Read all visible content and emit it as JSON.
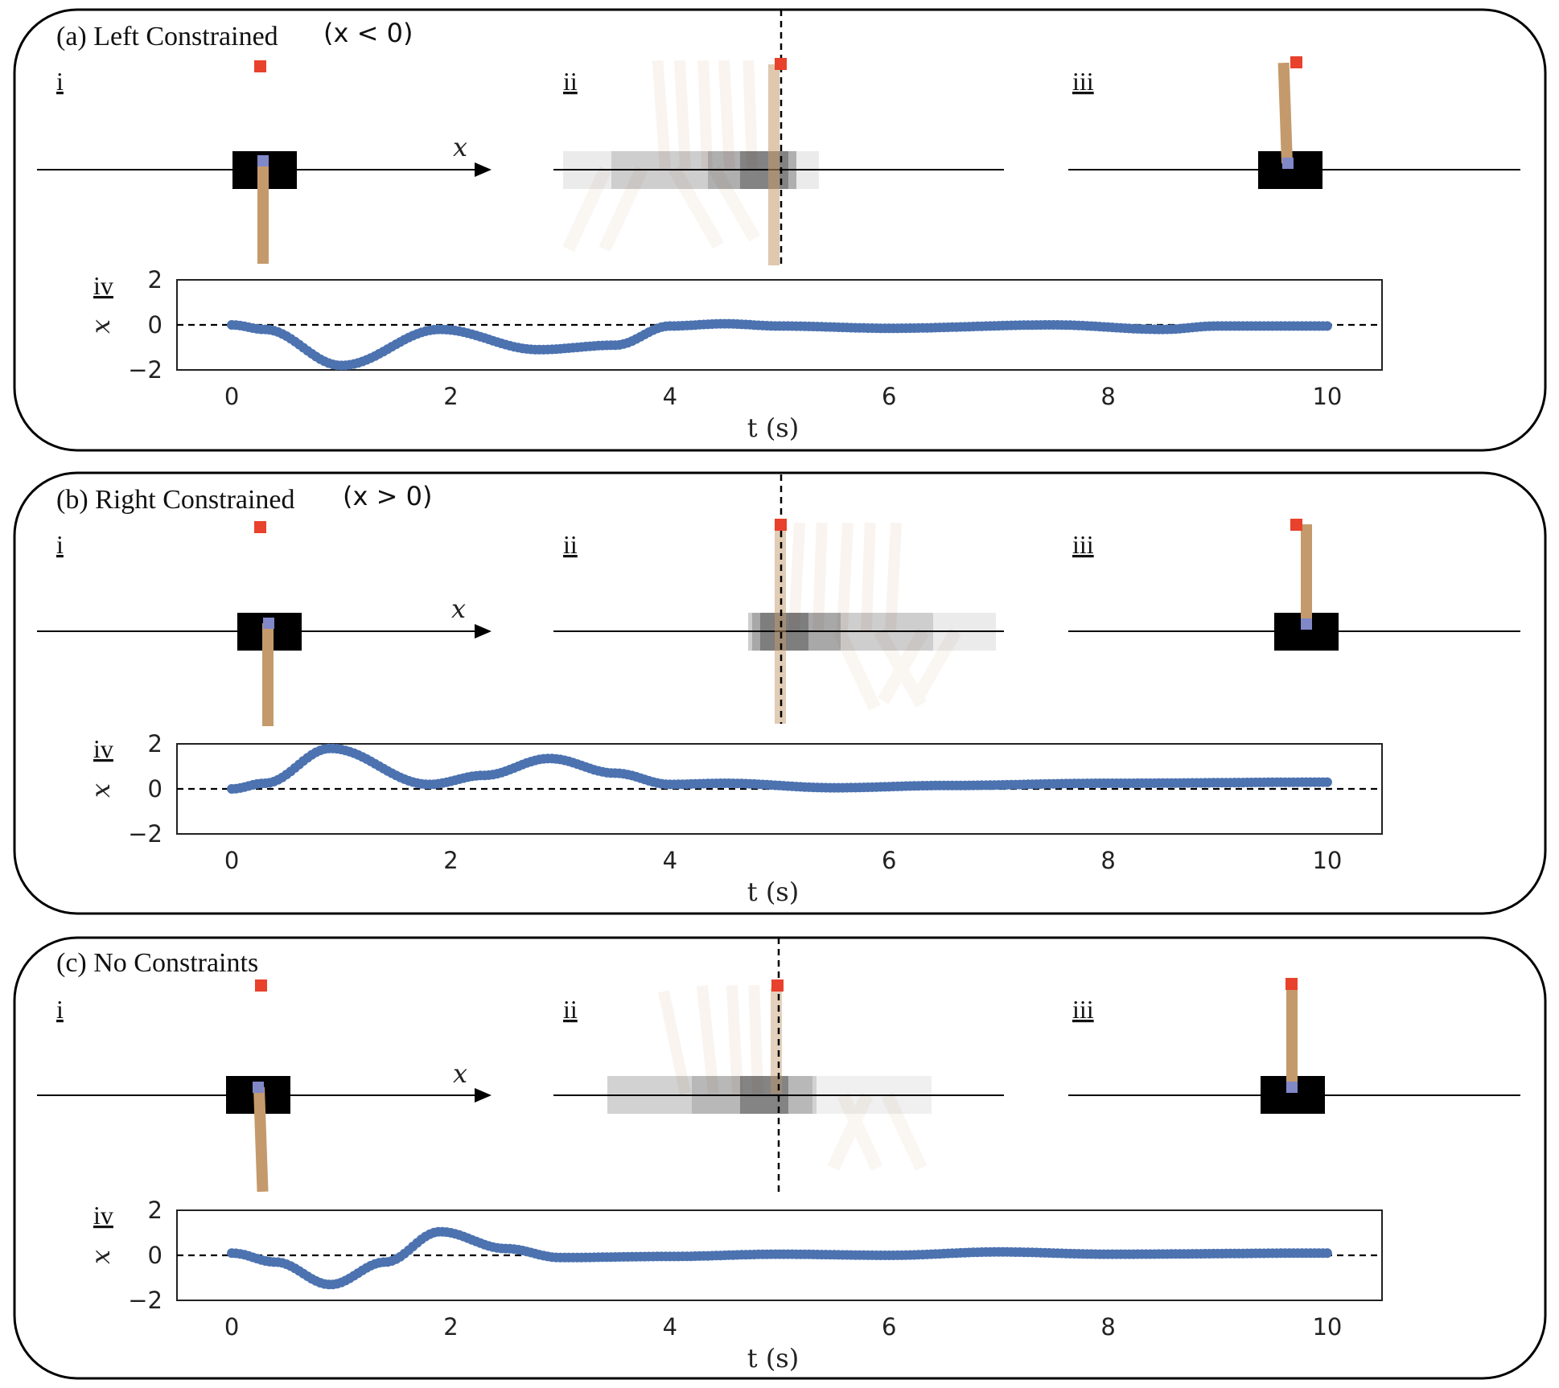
{
  "colors": {
    "series": "#4C72B0",
    "target": "#E8412C",
    "pole": "#C49A6C",
    "cart": "#000000",
    "pivot": "#8088C8",
    "panel_border": "#000000"
  },
  "labels": {
    "i": "i",
    "ii": "ii",
    "iii": "iii",
    "iv": "iv"
  },
  "cart_axis_label": "x",
  "chart_data": [
    {
      "type": "scatter",
      "panel": "(a)",
      "title": "(a) Left Constrained",
      "subtitle": "(x < 0)",
      "xlabel": "t (s)",
      "ylabel": "x",
      "xlim": [
        -0.5,
        10.5
      ],
      "ylim": [
        -2,
        2
      ],
      "xticks": [
        0,
        2,
        4,
        6,
        8,
        10
      ],
      "yticks": [
        -2,
        0,
        2
      ],
      "xtick_labels": [
        "0",
        "2",
        "4",
        "6",
        "8",
        "10"
      ],
      "ytick_labels": [
        "−2",
        "0",
        "2"
      ],
      "reference_line_y": 0,
      "key_points": [
        [
          0,
          0
        ],
        [
          0.3,
          -0.2
        ],
        [
          1.0,
          -1.8
        ],
        [
          1.9,
          -0.2
        ],
        [
          2.8,
          -1.1
        ],
        [
          3.5,
          -0.9
        ],
        [
          4.0,
          -0.05
        ],
        [
          4.5,
          0.05
        ],
        [
          5.0,
          -0.05
        ],
        [
          6.0,
          -0.15
        ],
        [
          7.5,
          0.0
        ],
        [
          8.5,
          -0.2
        ],
        [
          9.0,
          -0.05
        ],
        [
          10.0,
          -0.05
        ]
      ],
      "i_snapshot": {
        "cart_x": -1.0,
        "pole": "down"
      },
      "iii_snapshot": {
        "cart_x": 1.0,
        "pole": "up"
      }
    },
    {
      "type": "scatter",
      "panel": "(b)",
      "title": "(b) Right Constrained",
      "subtitle": "(x > 0)",
      "xlabel": "t (s)",
      "ylabel": "x",
      "xlim": [
        -0.5,
        10.5
      ],
      "ylim": [
        -2,
        2
      ],
      "xticks": [
        0,
        2,
        4,
        6,
        8,
        10
      ],
      "yticks": [
        -2,
        0,
        2
      ],
      "xtick_labels": [
        "0",
        "2",
        "4",
        "6",
        "8",
        "10"
      ],
      "ytick_labels": [
        "−2",
        "0",
        "2"
      ],
      "reference_line_y": 0,
      "key_points": [
        [
          0,
          0
        ],
        [
          0.3,
          0.25
        ],
        [
          0.9,
          1.8
        ],
        [
          1.8,
          0.2
        ],
        [
          2.3,
          0.6
        ],
        [
          2.9,
          1.35
        ],
        [
          3.5,
          0.7
        ],
        [
          4.0,
          0.2
        ],
        [
          4.5,
          0.25
        ],
        [
          5.5,
          0.05
        ],
        [
          6.5,
          0.15
        ],
        [
          8.0,
          0.25
        ],
        [
          10.0,
          0.3
        ]
      ],
      "i_snapshot": {
        "cart_x": -1.0,
        "pole": "down"
      },
      "iii_snapshot": {
        "cart_x": 1.0,
        "pole": "up"
      }
    },
    {
      "type": "scatter",
      "panel": "(c)",
      "title": "(c) No Constraints",
      "subtitle": "",
      "xlabel": "t (s)",
      "ylabel": "x",
      "xlim": [
        -0.5,
        10.5
      ],
      "ylim": [
        -2,
        2
      ],
      "xticks": [
        0,
        2,
        4,
        6,
        8,
        10
      ],
      "yticks": [
        -2,
        0,
        2
      ],
      "xtick_labels": [
        "0",
        "2",
        "4",
        "6",
        "8",
        "10"
      ],
      "ytick_labels": [
        "−2",
        "0",
        "2"
      ],
      "reference_line_y": 0,
      "key_points": [
        [
          0,
          0.1
        ],
        [
          0.4,
          -0.3
        ],
        [
          0.9,
          -1.3
        ],
        [
          1.4,
          -0.3
        ],
        [
          1.9,
          1.05
        ],
        [
          2.5,
          0.3
        ],
        [
          3.0,
          -0.1
        ],
        [
          4.0,
          -0.05
        ],
        [
          5.0,
          0.05
        ],
        [
          6.0,
          0.0
        ],
        [
          7.0,
          0.15
        ],
        [
          8.0,
          0.05
        ],
        [
          10.0,
          0.1
        ]
      ],
      "i_snapshot": {
        "cart_x": -1.0,
        "pole": "down"
      },
      "iii_snapshot": {
        "cart_x": 1.0,
        "pole": "up"
      }
    }
  ]
}
